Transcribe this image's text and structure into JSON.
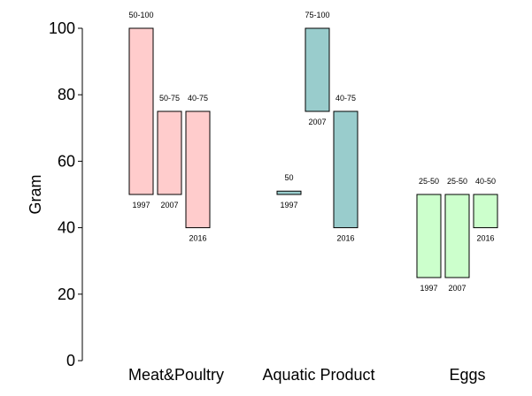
{
  "chart_data": {
    "type": "bar",
    "subtype": "floating-range",
    "title": "",
    "xlabel": "",
    "ylabel": "Gram",
    "ylim": [
      0,
      100
    ],
    "yticks": [
      0,
      20,
      40,
      60,
      80,
      100
    ],
    "grid": false,
    "legend": "none",
    "categories": [
      "Meat&Poultry",
      "Aquatic Product",
      "Eggs"
    ],
    "colors": {
      "Meat&Poultry": "#ffcccc",
      "Aquatic Product": "#99cccc",
      "Eggs": "#ccffcc"
    },
    "groups": [
      {
        "category": "Meat&Poultry",
        "bars": [
          {
            "year": "1997",
            "low": 50,
            "high": 100,
            "label": "50-100"
          },
          {
            "year": "2007",
            "low": 50,
            "high": 75,
            "label": "50-75"
          },
          {
            "year": "2016",
            "low": 40,
            "high": 75,
            "label": "40-75"
          }
        ]
      },
      {
        "category": "Aquatic Product",
        "bars": [
          {
            "year": "1997",
            "low": 50,
            "high": 51,
            "label": "50"
          },
          {
            "year": "2007",
            "low": 75,
            "high": 100,
            "label": "75-100"
          },
          {
            "year": "2016",
            "low": 40,
            "high": 75,
            "label": "40-75"
          }
        ]
      },
      {
        "category": "Eggs",
        "bars": [
          {
            "year": "1997",
            "low": 25,
            "high": 50,
            "label": "25-50"
          },
          {
            "year": "2007",
            "low": 25,
            "high": 50,
            "label": "25-50"
          },
          {
            "year": "2016",
            "low": 40,
            "high": 50,
            "label": "40-50"
          }
        ]
      }
    ]
  }
}
